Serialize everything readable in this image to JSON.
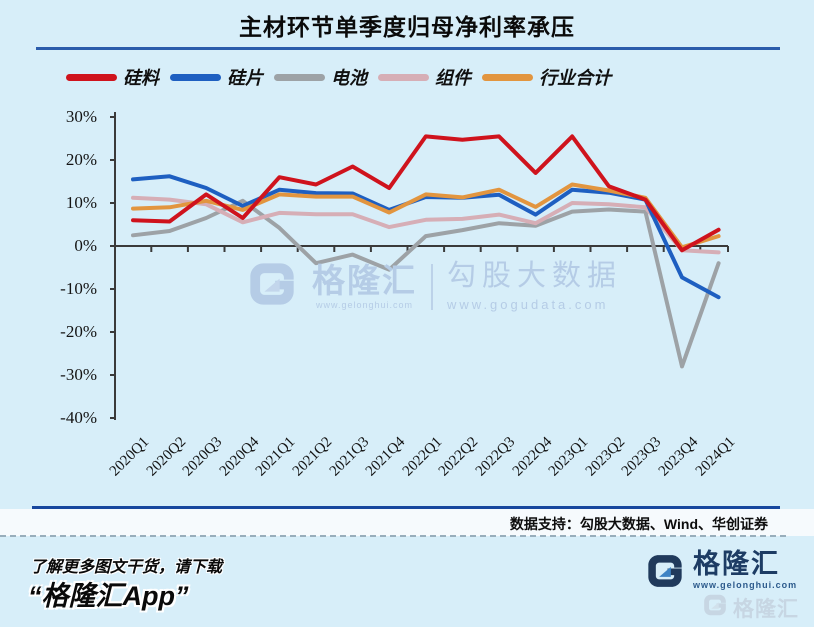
{
  "header": {
    "title": "主材环节单季度归母净利率承压"
  },
  "chart_data": {
    "type": "line",
    "title": "主材环节单季度归母净利率承压",
    "categories": [
      "2020Q1",
      "2020Q2",
      "2020Q3",
      "2020Q4",
      "2021Q1",
      "2021Q2",
      "2021Q3",
      "2021Q4",
      "2022Q1",
      "2022Q2",
      "2022Q3",
      "2022Q4",
      "2023Q1",
      "2023Q2",
      "2023Q3",
      "2023Q4",
      "2024Q1"
    ],
    "series": [
      {
        "id": "silicon-material",
        "name": "硅料",
        "color": "#cf131d",
        "values": [
          6.0,
          5.7,
          12.0,
          6.5,
          16.0,
          14.3,
          18.5,
          13.5,
          25.5,
          24.7,
          25.5,
          17.0,
          25.5,
          13.9,
          10.8,
          -1.0,
          3.8
        ]
      },
      {
        "id": "silicon-wafer",
        "name": "硅片",
        "color": "#1e5fc1",
        "values": [
          15.5,
          16.2,
          13.5,
          9.3,
          13.1,
          12.3,
          12.2,
          8.4,
          11.4,
          11.2,
          11.9,
          7.3,
          13.1,
          12.4,
          10.8,
          -7.3,
          -11.9
        ]
      },
      {
        "id": "cell",
        "name": "电池",
        "color": "#9da2a6",
        "values": [
          2.5,
          3.5,
          6.5,
          10.5,
          4.2,
          -4.0,
          -2.0,
          -5.5,
          2.3,
          3.7,
          5.3,
          4.7,
          8.0,
          8.5,
          8.0,
          -28.0,
          -4.0
        ]
      },
      {
        "id": "module",
        "name": "组件",
        "color": "#d6aeb6",
        "values": [
          11.2,
          10.8,
          9.7,
          5.5,
          7.7,
          7.4,
          7.4,
          4.4,
          6.1,
          6.3,
          7.3,
          5.3,
          10.0,
          9.7,
          9.0,
          -1.0,
          -1.5
        ]
      },
      {
        "id": "industry-total",
        "name": "行业合计",
        "color": "#e2953f",
        "values": [
          8.7,
          9.0,
          10.5,
          8.4,
          12.0,
          11.5,
          11.5,
          7.8,
          12.0,
          11.3,
          13.1,
          9.1,
          14.3,
          12.9,
          11.2,
          -0.3,
          2.3
        ]
      }
    ],
    "draw_order": [
      "cell",
      "module",
      "silicon-wafer",
      "industry-total",
      "silicon-material"
    ],
    "ylim": [
      -40,
      30
    ],
    "ytick_step": 10,
    "ytick_labels": [
      "30%",
      "20%",
      "10%",
      "0%",
      "-10%",
      "-20%",
      "-30%",
      "-40%"
    ],
    "grid": false,
    "legend_position": "top-left",
    "xlabel": "",
    "ylabel": ""
  },
  "watermark_center": {
    "brand": "格隆汇",
    "brand_url": "www.gelonghui.com",
    "product": "勾股大数据",
    "product_url": "www.gogudata.com"
  },
  "source_note": {
    "label": "数据支持：勾股大数据、Wind、华创证券"
  },
  "footer": {
    "promo_line1": "了解更多图文干货，请下载",
    "promo_line2": "“格隆汇App”",
    "brand": "格隆汇",
    "brand_url": "www.gelonghui.com",
    "corner_watermark_brand": "格隆汇"
  },
  "colors": {
    "background": "#d7eef9",
    "title_rule": "#2b5cab",
    "bottom_rule": "#17479e",
    "axis": "#3a3a3a",
    "logo_navy": "#203a5c",
    "logo_arrow_blue": "#3d83c4",
    "watermark_blue": "#b5cce6"
  }
}
